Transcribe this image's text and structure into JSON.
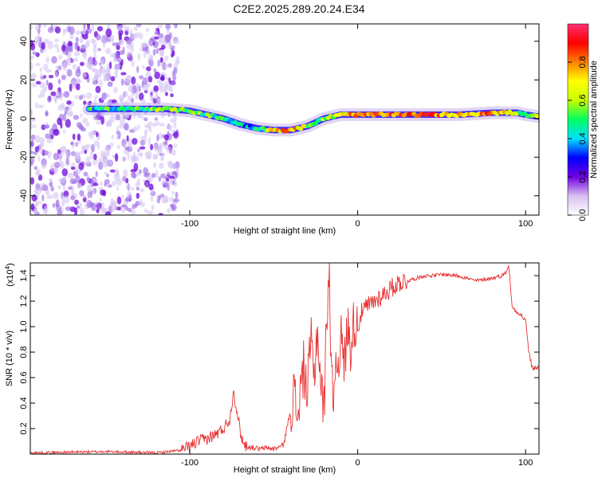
{
  "title": "C2E2.2025.289.20.24.E34",
  "chart_data": [
    {
      "type": "heatmap",
      "name": "spectrogram",
      "xlabel": "Height of straight line (km)",
      "ylabel": "Frequency (Hz)",
      "xlim": [
        -195,
        108
      ],
      "ylim": [
        -50,
        49
      ],
      "x_ticks": [
        -100,
        0,
        100
      ],
      "y_ticks": [
        -40,
        -20,
        0,
        20,
        40
      ],
      "noise_region_x": [
        -195,
        -107
      ],
      "ridge": {
        "x": [
          -160,
          -130,
          -115,
          -100,
          -90,
          -80,
          -70,
          -60,
          -50,
          -40,
          -30,
          -20,
          -10,
          0,
          20,
          40,
          60,
          80,
          95,
          100,
          108
        ],
        "y": [
          5,
          5,
          5,
          4,
          2,
          0,
          -3,
          -5,
          -6,
          -6,
          -4,
          0,
          2,
          2,
          2,
          2,
          2,
          3,
          3,
          2,
          1
        ],
        "amplitude": [
          0.45,
          0.5,
          0.55,
          0.55,
          0.5,
          0.45,
          0.4,
          0.4,
          0.7,
          0.8,
          0.6,
          0.55,
          0.7,
          0.8,
          0.85,
          0.85,
          0.7,
          0.8,
          0.6,
          0.45,
          0.6
        ]
      },
      "colorbar": {
        "label": "Normalized spectral amplitude",
        "range": [
          0,
          1
        ],
        "ticks": [
          "0.0",
          "0.2",
          "0.4",
          "0.6",
          "0.8"
        ],
        "tick_values": [
          0,
          0.2,
          0.4,
          0.6,
          0.8
        ],
        "colors": [
          "#ffffff",
          "#d8c0f0",
          "#7000e0",
          "#0000ff",
          "#00e0ff",
          "#00ff60",
          "#c8ff00",
          "#ffff00",
          "#ff8000",
          "#ff0000",
          "#ff3070"
        ]
      }
    },
    {
      "type": "line",
      "name": "snr",
      "xlabel": "Height of straight line (km)",
      "ylabel": "SNR (10 * v/v)",
      "y_multiplier": "(x10",
      "y_multiplier_exp": "4",
      "y_multiplier_close": ")",
      "xlim": [
        -195,
        108
      ],
      "ylim": [
        0,
        1.5
      ],
      "x_ticks": [
        -100,
        0,
        100
      ],
      "y_ticks": [
        0.2,
        0.4,
        0.6,
        0.8,
        1.0,
        1.2,
        1.4
      ],
      "y_tick_labels": [
        "0.2",
        "0.4",
        "0.6",
        "0.8",
        "1.0",
        "1.2",
        "1.4"
      ],
      "color": "#e83030",
      "series": [
        {
          "name": "SNR",
          "x": [
            -195,
            -150,
            -120,
            -105,
            -100,
            -95,
            -90,
            -85,
            -80,
            -76,
            -74,
            -72,
            -70,
            -68,
            -66,
            -62,
            -58,
            -54,
            -50,
            -46,
            -44,
            -40,
            -38,
            -36,
            -34,
            -32,
            -30,
            -28,
            -26,
            -24,
            -22,
            -20,
            -18,
            -17,
            -16,
            -15,
            -14,
            -12,
            -10,
            -8,
            -6,
            -4,
            -2,
            0,
            2,
            5,
            10,
            15,
            20,
            25,
            30,
            35,
            40,
            45,
            50,
            60,
            70,
            80,
            86,
            88,
            90,
            92,
            95,
            98,
            100,
            102,
            104,
            106,
            108
          ],
          "y": [
            0.01,
            0.02,
            0.01,
            0.03,
            0.06,
            0.1,
            0.12,
            0.15,
            0.2,
            0.28,
            0.5,
            0.35,
            0.18,
            0.08,
            0.06,
            0.05,
            0.04,
            0.05,
            0.04,
            0.06,
            0.08,
            0.35,
            0.48,
            0.3,
            0.5,
            0.7,
            0.45,
            0.9,
            0.6,
            1.0,
            0.55,
            0.35,
            1.25,
            1.5,
            0.8,
            0.45,
            0.6,
            0.75,
            0.9,
            0.7,
            1.0,
            0.85,
            1.05,
            1.0,
            1.1,
            1.15,
            1.2,
            1.25,
            1.3,
            1.35,
            1.36,
            1.38,
            1.4,
            1.4,
            1.41,
            1.4,
            1.36,
            1.38,
            1.4,
            1.42,
            1.48,
            1.15,
            1.12,
            1.08,
            1.05,
            0.8,
            0.67,
            0.68,
            0.68
          ]
        }
      ]
    }
  ]
}
